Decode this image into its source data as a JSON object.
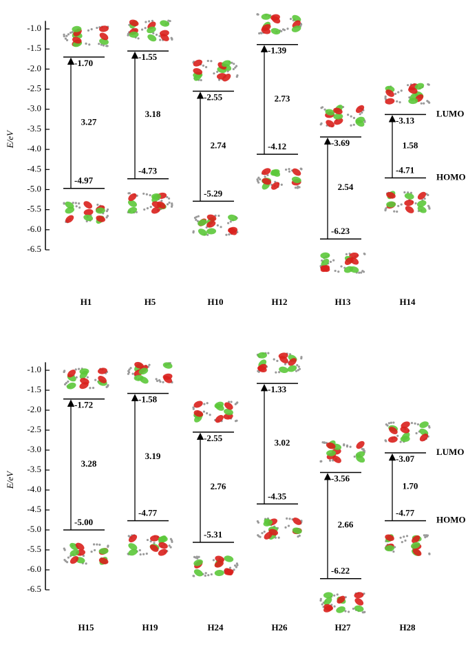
{
  "chart_data": [
    {
      "type": "energy-level",
      "ylabel": "E/eV",
      "color": "#000000",
      "ylim": [
        -6.5,
        -0.8
      ],
      "yticks": [
        {
          "value": -1,
          "label": "-1.0"
        },
        -1.5,
        {
          "value": -2,
          "label": "-2.0"
        },
        -2.5,
        {
          "value": -3,
          "label": "-3.0"
        },
        -3.5,
        {
          "value": -4,
          "label": "-4.0"
        },
        -4.5,
        {
          "value": -5,
          "label": "-5.0"
        },
        -5.5,
        {
          "value": -6,
          "label": "-6.0"
        },
        -6.5
      ],
      "categories": [
        "H1",
        "H5",
        "H10",
        "H12",
        "H13",
        "H14"
      ],
      "series": [
        {
          "name": "LUMO",
          "values": [
            -1.7,
            -1.55,
            -2.55,
            -1.39,
            -3.69,
            -3.13
          ],
          "value_labels": [
            "-1.70",
            "-1.55",
            "-2.55",
            "-1.39",
            "-3.69",
            "-3.13"
          ]
        },
        {
          "name": "HOMO",
          "values": [
            -4.97,
            -4.73,
            -5.29,
            -4.12,
            -6.23,
            -4.71
          ],
          "value_labels": [
            "-4.97",
            "-4.73",
            "-5.29",
            "-4.12",
            "-6.23",
            "-4.71"
          ]
        }
      ],
      "gaps": [
        3.27,
        3.18,
        2.74,
        2.73,
        2.54,
        1.58
      ]
    },
    {
      "type": "energy-level",
      "ylabel": "E/eV",
      "color": "#000000",
      "ylim": [
        -6.5,
        -0.8
      ],
      "yticks": [
        {
          "value": -1,
          "label": "-1.0"
        },
        -1.5,
        {
          "value": -2,
          "label": "-2.0"
        },
        -2.5,
        {
          "value": -3,
          "label": "-3.0"
        },
        -3.5,
        {
          "value": -4,
          "label": "-4.0"
        },
        -4.5,
        {
          "value": -5,
          "label": "-5.0"
        },
        -5.5,
        {
          "value": -6,
          "label": "-6.0"
        },
        -6.5
      ],
      "categories": [
        "H15",
        "H19",
        "H24",
        "H26",
        "H27",
        "H28"
      ],
      "series": [
        {
          "name": "LUMO",
          "values": [
            -1.72,
            -1.58,
            -2.55,
            -1.33,
            -3.56,
            -3.07
          ],
          "value_labels": [
            "-1.72",
            "-1.58",
            "-2.55",
            "-1.33",
            "-3.56",
            "-3.07"
          ]
        },
        {
          "name": "HOMO",
          "values": [
            -5.0,
            -4.77,
            -5.31,
            -4.35,
            -6.22,
            -4.77
          ],
          "value_labels": [
            "-5.00",
            "-4.77",
            "-5.31",
            "-4.35",
            "-6.22",
            "-4.77"
          ]
        }
      ],
      "gaps": [
        3.28,
        3.19,
        2.76,
        3.02,
        2.66,
        1.7
      ],
      "gap_labels": [
        "3.28",
        "3.19",
        "2.76",
        "3.02",
        "2.66",
        "1.70"
      ]
    }
  ]
}
